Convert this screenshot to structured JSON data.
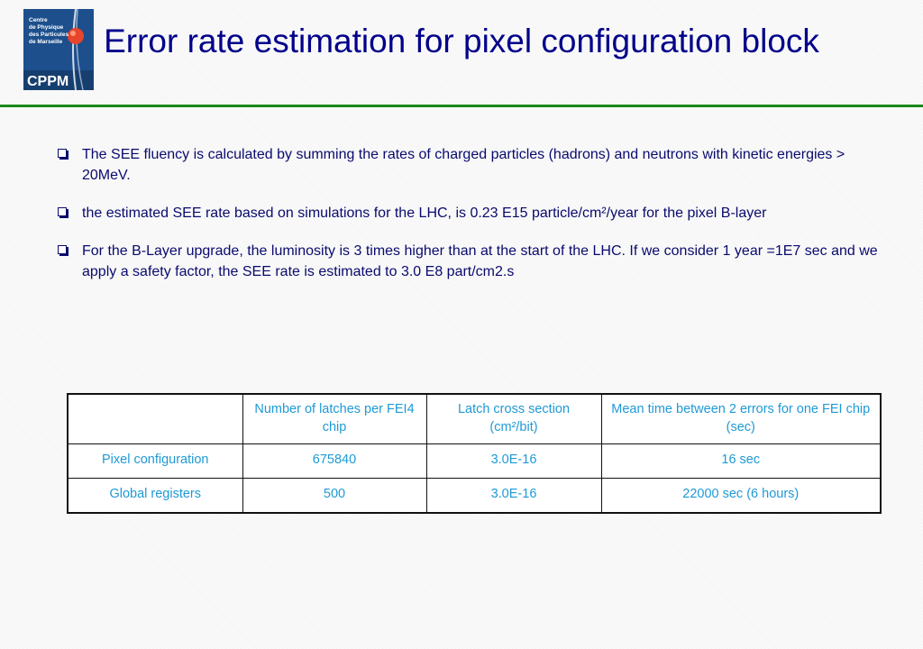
{
  "slide": {
    "title": "Error rate estimation for pixel configuration block",
    "logo": {
      "lines": [
        "Centre",
        "de Physique",
        "des Particules",
        "de Marseille"
      ],
      "acronym": "CPPM"
    },
    "bullets": [
      "The SEE fluency is calculated by summing the rates of charged particles (hadrons) and neutrons with kinetic energies > 20MeV.",
      "the estimated SEE rate based on simulations for the LHC, is 0.23 E15 particle/cm²/year for the pixel B-layer",
      "For the B-Layer upgrade, the luminosity is 3 times higher than at the start of the LHC. If we consider 1 year =1E7 sec and we apply a safety factor, the SEE rate is estimated to  3.0 E8 part/cm2.s"
    ],
    "table": {
      "headers": [
        "",
        "Number of latches per FEI4 chip",
        "Latch cross section (cm²/bit)",
        "Mean time between 2 errors for one FEI chip (sec)"
      ],
      "rows": [
        [
          "Pixel configuration",
          "675840",
          "3.0E-16",
          "16 sec"
        ],
        [
          "Global registers",
          "500",
          "3.0E-16",
          "22000 sec (6 hours)"
        ]
      ]
    },
    "colors": {
      "title": "#00008b",
      "body_text": "#0a0a6e",
      "table_text": "#1e9ad6",
      "rule": "#1a8a1a"
    }
  }
}
